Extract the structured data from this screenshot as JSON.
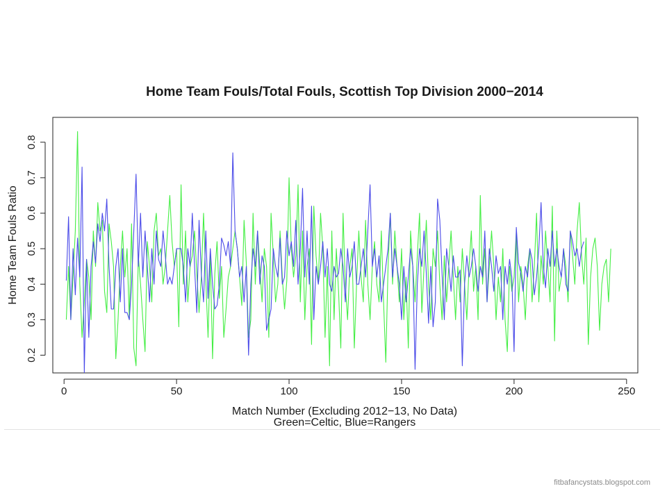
{
  "chart_data": {
    "type": "line",
    "title": "Home Team Fouls/Total Fouls, Scottish Top Division 2000−2014",
    "xlabel": "Match Number (Excluding 2012−13, No Data)",
    "xlabel2": "Green=Celtic, Blue=Rangers",
    "ylabel": "Home Team Fouls Ratio",
    "xlim": [
      -5,
      255
    ],
    "ylim": [
      0.15,
      0.87
    ],
    "xticks": [
      0,
      50,
      100,
      150,
      200,
      250
    ],
    "xtick_labels": [
      "0",
      "50",
      "100",
      "150",
      "200",
      "250"
    ],
    "yticks": [
      0.2,
      0.3,
      0.4,
      0.5,
      0.6,
      0.7,
      0.8
    ],
    "ytick_labels": [
      "0.2",
      "0.3",
      "0.4",
      "0.5",
      "0.6",
      "0.7",
      "0.8"
    ],
    "grid": false,
    "legend": "none",
    "series": [
      {
        "name": "Celtic",
        "color": "#44ee44",
        "x_start": 1,
        "values": [
          0.3,
          0.45,
          0.3,
          0.42,
          0.55,
          0.83,
          0.4,
          0.25,
          0.35,
          0.47,
          0.42,
          0.3,
          0.55,
          0.45,
          0.63,
          0.55,
          0.58,
          0.38,
          0.32,
          0.57,
          0.52,
          0.45,
          0.19,
          0.3,
          0.45,
          0.55,
          0.42,
          0.5,
          0.3,
          0.57,
          0.22,
          0.17,
          0.48,
          0.4,
          0.3,
          0.21,
          0.52,
          0.45,
          0.35,
          0.55,
          0.6,
          0.48,
          0.5,
          0.4,
          0.45,
          0.55,
          0.65,
          0.52,
          0.45,
          0.5,
          0.28,
          0.68,
          0.4,
          0.55,
          0.35,
          0.45,
          0.48,
          0.55,
          0.43,
          0.32,
          0.42,
          0.6,
          0.41,
          0.25,
          0.48,
          0.19,
          0.43,
          0.52,
          0.36,
          0.45,
          0.25,
          0.33,
          0.42,
          0.45,
          0.5,
          0.55,
          0.5,
          0.42,
          0.34,
          0.58,
          0.46,
          0.25,
          0.3,
          0.6,
          0.4,
          0.55,
          0.45,
          0.35,
          0.5,
          0.45,
          0.25,
          0.6,
          0.48,
          0.35,
          0.4,
          0.55,
          0.42,
          0.33,
          0.41,
          0.7,
          0.5,
          0.42,
          0.48,
          0.68,
          0.35,
          0.55,
          0.3,
          0.45,
          0.5,
          0.23,
          0.62,
          0.48,
          0.4,
          0.6,
          0.5,
          0.25,
          0.45,
          0.17,
          0.55,
          0.3,
          0.5,
          0.38,
          0.22,
          0.6,
          0.4,
          0.3,
          0.45,
          0.5,
          0.22,
          0.4,
          0.55,
          0.42,
          0.35,
          0.58,
          0.4,
          0.3,
          0.45,
          0.52,
          0.4,
          0.35,
          0.55,
          0.35,
          0.18,
          0.45,
          0.6,
          0.4,
          0.55,
          0.45,
          0.35,
          0.5,
          0.3,
          0.42,
          0.22,
          0.55,
          0.45,
          0.35,
          0.48,
          0.6,
          0.32,
          0.45,
          0.58,
          0.4,
          0.3,
          0.5,
          0.45,
          0.55,
          0.4,
          0.3,
          0.48,
          0.35,
          0.45,
          0.55,
          0.42,
          0.3,
          0.45,
          0.35,
          0.5,
          0.4,
          0.3,
          0.45,
          0.55,
          0.38,
          0.45,
          0.3,
          0.65,
          0.4,
          0.5,
          0.35,
          0.45,
          0.55,
          0.45,
          0.3,
          0.42,
          0.35,
          0.5,
          0.3,
          0.21,
          0.45,
          0.38,
          0.42,
          0.55,
          0.35,
          0.45,
          0.4,
          0.3,
          0.45,
          0.5,
          0.35,
          0.45,
          0.6,
          0.35,
          0.48,
          0.4,
          0.55,
          0.45,
          0.35,
          0.62,
          0.24,
          0.55,
          0.38,
          0.42,
          0.5,
          0.45,
          0.35,
          0.55,
          0.48,
          0.4,
          0.55,
          0.63,
          0.48,
          0.4,
          0.53,
          0.23,
          0.42,
          0.5,
          0.53,
          0.45,
          0.27,
          0.4,
          0.45,
          0.47,
          0.35,
          0.5
        ]
      },
      {
        "name": "Rangers",
        "color": "#4a4ae8",
        "x_start": 1,
        "values": [
          0.41,
          0.59,
          0.3,
          0.5,
          0.37,
          0.53,
          0.42,
          0.73,
          0.15,
          0.47,
          0.25,
          0.45,
          0.52,
          0.46,
          0.57,
          0.52,
          0.6,
          0.55,
          0.64,
          0.45,
          0.33,
          0.33,
          0.45,
          0.5,
          0.35,
          0.5,
          0.32,
          0.32,
          0.3,
          0.4,
          0.55,
          0.71,
          0.45,
          0.6,
          0.42,
          0.55,
          0.45,
          0.35,
          0.5,
          0.4,
          0.55,
          0.47,
          0.45,
          0.55,
          0.48,
          0.4,
          0.42,
          0.4,
          0.45,
          0.5,
          0.5,
          0.5,
          0.45,
          0.35,
          0.5,
          0.45,
          0.6,
          0.45,
          0.32,
          0.58,
          0.43,
          0.35,
          0.55,
          0.36,
          0.5,
          0.4,
          0.33,
          0.34,
          0.4,
          0.53,
          0.51,
          0.48,
          0.52,
          0.45,
          0.77,
          0.55,
          0.5,
          0.42,
          0.45,
          0.35,
          0.45,
          0.2,
          0.4,
          0.5,
          0.45,
          0.55,
          0.4,
          0.48,
          0.45,
          0.27,
          0.3,
          0.33,
          0.5,
          0.45,
          0.42,
          0.53,
          0.4,
          0.42,
          0.55,
          0.48,
          0.52,
          0.45,
          0.58,
          0.4,
          0.5,
          0.67,
          0.42,
          0.55,
          0.4,
          0.62,
          0.3,
          0.45,
          0.4,
          0.45,
          0.52,
          0.42,
          0.5,
          0.4,
          0.38,
          0.45,
          0.42,
          0.43,
          0.5,
          0.45,
          0.35,
          0.5,
          0.42,
          0.45,
          0.52,
          0.4,
          0.4,
          0.45,
          0.5,
          0.42,
          0.55,
          0.68,
          0.45,
          0.5,
          0.42,
          0.48,
          0.35,
          0.4,
          0.45,
          0.5,
          0.6,
          0.42,
          0.5,
          0.45,
          0.4,
          0.3,
          0.45,
          0.35,
          0.42,
          0.5,
          0.45,
          0.16,
          0.4,
          0.5,
          0.45,
          0.55,
          0.43,
          0.29,
          0.45,
          0.28,
          0.35,
          0.64,
          0.58,
          0.43,
          0.3,
          0.5,
          0.45,
          0.38,
          0.48,
          0.42,
          0.42,
          0.44,
          0.17,
          0.4,
          0.48,
          0.42,
          0.45,
          0.5,
          0.45,
          0.38,
          0.45,
          0.42,
          0.55,
          0.35,
          0.5,
          0.45,
          0.38,
          0.48,
          0.43,
          0.45,
          0.3,
          0.45,
          0.4,
          0.47,
          0.42,
          0.21,
          0.56,
          0.46,
          0.43,
          0.38,
          0.45,
          0.42,
          0.5,
          0.47,
          0.37,
          0.42,
          0.5,
          0.63,
          0.45,
          0.39,
          0.5,
          0.45,
          0.55,
          0.45,
          0.5,
          0.45,
          0.42,
          0.5,
          0.4,
          0.38,
          0.55,
          0.52,
          0.48,
          0.5,
          0.45,
          0.5,
          0.52
        ]
      }
    ]
  },
  "watermark": "fitbafancystats.blogspot.com"
}
